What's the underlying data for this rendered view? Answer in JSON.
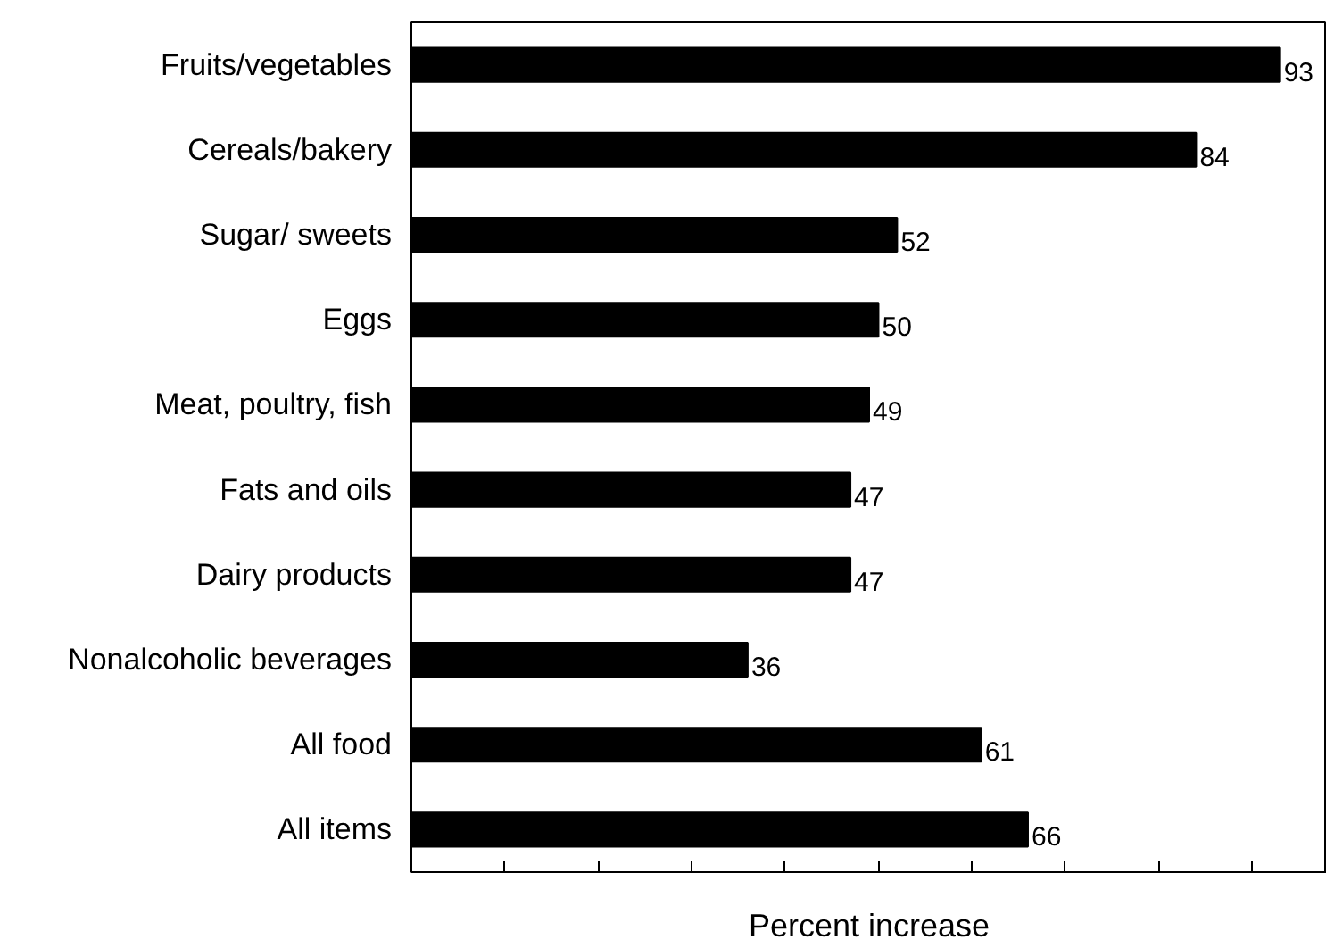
{
  "chart_data": {
    "type": "bar",
    "orientation": "horizontal",
    "xlabel": "Percent increase",
    "categories": [
      "Fruits/vegetables",
      "Cereals/bakery",
      "Sugar/ sweets",
      "Eggs",
      "Meat, poultry, fish",
      "Fats and oils",
      "Dairy products",
      "Nonalcoholic beverages",
      "All food",
      "All items"
    ],
    "values": [
      93,
      84,
      52,
      50,
      49,
      47,
      47,
      36,
      61,
      66
    ],
    "color": "#000000",
    "data_labels": true,
    "xlim": [
      0,
      98
    ],
    "xticks": [
      {
        "value": 10,
        "label": null
      },
      {
        "value": 20,
        "label": null
      },
      {
        "value": 30,
        "label": null
      },
      {
        "value": 40,
        "label": null
      },
      {
        "value": 50,
        "label": null
      },
      {
        "value": 60,
        "label": null
      },
      {
        "value": 70,
        "label": null
      },
      {
        "value": 80,
        "label": null
      },
      {
        "value": 90,
        "label": null
      }
    ],
    "tick_labels": "y",
    "grid": false
  }
}
